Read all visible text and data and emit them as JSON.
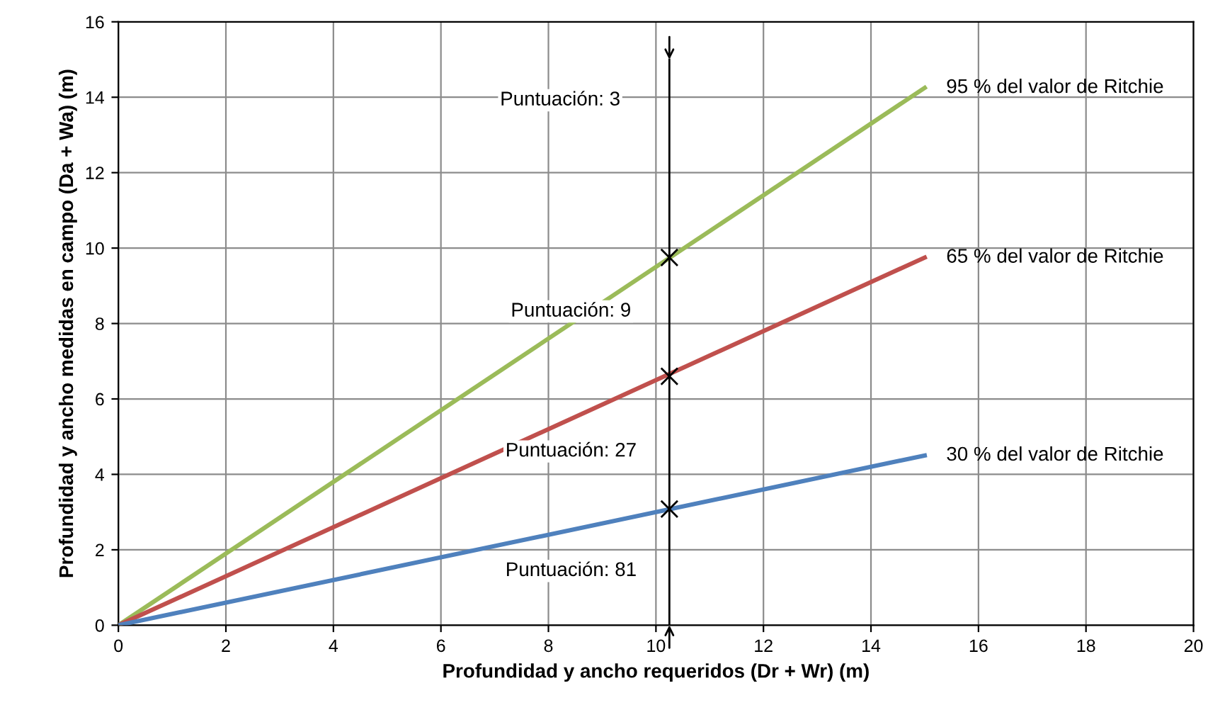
{
  "chart_data": {
    "type": "line",
    "xlabel": "Profundidad y ancho requeridos (Dr + Wr) (m)",
    "ylabel": "Profundidad y ancho medidas en campo (Da + Wa) (m)",
    "xlim": [
      0,
      20
    ],
    "xticks": [
      0,
      2,
      4,
      6,
      8,
      10,
      12,
      14,
      16,
      18,
      20
    ],
    "ylim": [
      0,
      16
    ],
    "yticks": [
      0,
      2,
      4,
      6,
      8,
      10,
      12,
      14,
      16
    ],
    "grid": true,
    "series": [
      {
        "name": "95 % del valor de Ritchie",
        "color": "#9bbb59",
        "x": [
          0,
          15
        ],
        "values": [
          0,
          14.25
        ]
      },
      {
        "name": "65 % del valor de Ritchie",
        "color": "#c0504d",
        "x": [
          0,
          15
        ],
        "values": [
          0,
          9.75
        ]
      },
      {
        "name": "30 % del valor de Ritchie",
        "color": "#4f81bd",
        "x": [
          0,
          15
        ],
        "values": [
          0,
          4.5
        ]
      },
      {
        "type": "line",
        "color": "#000000",
        "x": [
          10.25,
          10.25
        ],
        "values": [
          0,
          15
        ]
      },
      {
        "type": "scatter",
        "marker": "cross",
        "color": "#000000",
        "x": [
          10.25,
          10.25,
          10.25
        ],
        "values": [
          3.08,
          6.6,
          9.75
        ]
      }
    ],
    "annotations": [
      "Puntuación: 3",
      "Puntuación: 9",
      "Puntuación: 27",
      "Puntuación: 81"
    ]
  }
}
